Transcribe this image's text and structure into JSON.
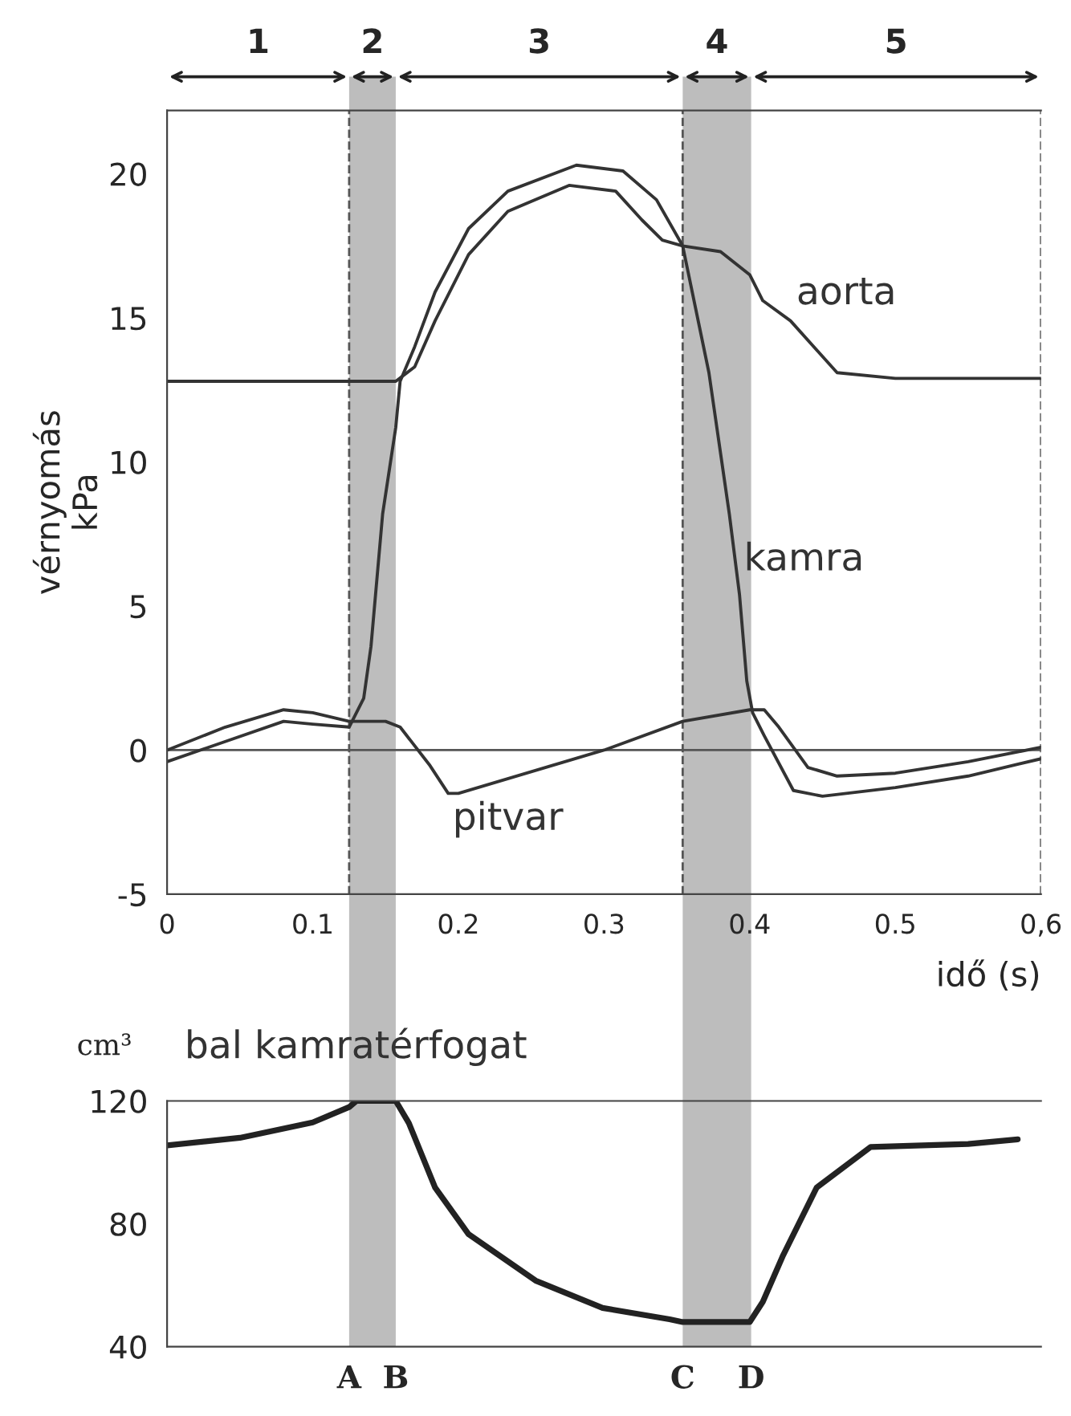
{
  "chart_data": [
    {
      "type": "line",
      "xlabel": "idő (s)",
      "ylabel": "vérnyomás\nkPa",
      "xlim": [
        0,
        0.6
      ],
      "ylim": [
        -5,
        22.2
      ],
      "xticks": [
        {
          "value": 0,
          "label": "0"
        },
        0.1,
        0.2,
        0.3,
        0.4,
        0.5,
        {
          "value": 0.6,
          "label": "0,6"
        }
      ],
      "yticks": [
        -5,
        0,
        5,
        10,
        15,
        20
      ],
      "grid": false,
      "legend": false,
      "marker": "none",
      "line_style": "solid",
      "series": [
        {
          "name": "aorta",
          "color": "#333333",
          "x": [
            0,
            0.1,
            0.157,
            0.17,
            0.184,
            0.207,
            0.234,
            0.276,
            0.308,
            0.326,
            0.34,
            0.354,
            0.38,
            0.4,
            0.409,
            0.428,
            0.46,
            0.5,
            0.6
          ],
          "values": [
            12.8,
            12.8,
            12.8,
            13.3,
            14.9,
            17.2,
            18.7,
            19.6,
            19.4,
            18.4,
            17.7,
            17.5,
            17.3,
            16.5,
            15.6,
            14.9,
            13.1,
            12.9,
            12.9
          ]
        },
        {
          "name": "kamra",
          "color": "#333333",
          "x": [
            0,
            0.04,
            0.08,
            0.1,
            0.125,
            0.135,
            0.14,
            0.148,
            0.157,
            0.16,
            0.17,
            0.184,
            0.207,
            0.234,
            0.281,
            0.313,
            0.336,
            0.354,
            0.372,
            0.386,
            0.393,
            0.398,
            0.402,
            0.41,
            0.43,
            0.45,
            0.5,
            0.55,
            0.6
          ],
          "values": [
            -0.4,
            0.3,
            1.0,
            0.9,
            0.8,
            1.8,
            3.6,
            8.2,
            11.2,
            12.8,
            14.0,
            15.9,
            18.1,
            19.4,
            20.3,
            20.1,
            19.1,
            17.5,
            13.1,
            8.2,
            5.4,
            2.4,
            1.3,
            0.5,
            -1.4,
            -1.6,
            -1.3,
            -0.9,
            -0.3
          ]
        },
        {
          "name": "pitvar",
          "color": "#333333",
          "x": [
            0,
            0.04,
            0.08,
            0.1,
            0.125,
            0.15,
            0.16,
            0.18,
            0.193,
            0.2,
            0.3,
            0.354,
            0.4,
            0.41,
            0.42,
            0.44,
            0.46,
            0.5,
            0.55,
            0.6
          ],
          "values": [
            0.0,
            0.8,
            1.4,
            1.3,
            1.0,
            1.0,
            0.8,
            -0.5,
            -1.5,
            -1.5,
            0.0,
            1.0,
            1.4,
            1.4,
            0.8,
            -0.6,
            -0.9,
            -0.8,
            -0.4,
            0.1
          ]
        }
      ],
      "ref_lines": [
        {
          "axis": "y",
          "value": 0,
          "color": "#555555",
          "line_style": "solid"
        },
        {
          "axis": "x",
          "value": 0.125,
          "color": "#555555",
          "line_style": "dashed"
        },
        {
          "axis": "x",
          "value": 0.354,
          "color": "#555555",
          "line_style": "dashed"
        },
        {
          "axis": "x",
          "value": 0.6,
          "color": "#555555",
          "line_style": "dashed"
        }
      ],
      "bands": [
        {
          "axis": "x",
          "from": 0.125,
          "to": 0.157,
          "color": "#bdbdbd"
        },
        {
          "axis": "x",
          "from": 0.354,
          "to": 0.401,
          "color": "#bdbdbd"
        }
      ],
      "annotations": [
        "1",
        "2",
        "3",
        "4",
        "5"
      ]
    },
    {
      "type": "line",
      "title": "bal kamratérfogat",
      "ylabel": "cm³",
      "xlim": [
        0,
        0.6
      ],
      "ylim": [
        40,
        120
      ],
      "yticks": [
        40,
        80,
        120
      ],
      "tick_labels": "y",
      "grid": false,
      "legend": false,
      "marker": "none",
      "line_style": "solid",
      "series": [
        {
          "color": "#222222",
          "x": [
            0,
            0.05,
            0.1,
            0.125,
            0.13,
            0.157,
            0.166,
            0.184,
            0.207,
            0.253,
            0.299,
            0.345,
            0.354,
            0.4,
            0.409,
            0.423,
            0.446,
            0.483,
            0.55,
            0.584
          ],
          "values": [
            105.5,
            108,
            113,
            118,
            120,
            120,
            112.8,
            91.8,
            76.6,
            61.5,
            52.6,
            48.9,
            48,
            48,
            54.6,
            69.8,
            91.8,
            105,
            106,
            107.5
          ]
        }
      ],
      "bands": [
        {
          "axis": "x",
          "from": 0.125,
          "to": 0.157,
          "color": "#bdbdbd"
        },
        {
          "axis": "x",
          "from": 0.354,
          "to": 0.401,
          "color": "#bdbdbd"
        }
      ],
      "annotations": [
        {
          "text": "A",
          "x": 0.125,
          "y": 40
        },
        {
          "text": "B",
          "x": 0.157,
          "y": 40
        },
        {
          "text": "C",
          "x": 0.354,
          "y": 40
        },
        {
          "text": "D",
          "x": 0.401,
          "y": 40
        }
      ]
    }
  ]
}
